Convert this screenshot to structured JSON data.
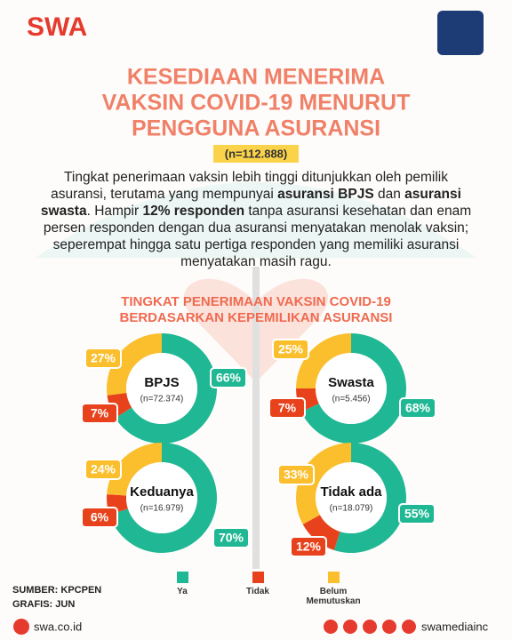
{
  "header": {
    "brand": "SWA",
    "title": [
      "KESEDIAAN MENERIMA",
      "VAKSIN COVID-19 MENURUT",
      "PENGGUNA ASURANSI"
    ],
    "sample": "(n=112.888)"
  },
  "intro": [
    {
      "text": "Tingkat penerimaan vaksin lebih tinggi ditunjukkan oleh pemilik asuransi, terutama yang mempunyai ",
      "bold": false
    },
    {
      "text": "asuransi BPJS",
      "bold": true
    },
    {
      "text": " dan ",
      "bold": false
    },
    {
      "text": "asuransi swasta",
      "bold": true
    },
    {
      "text": ". Hampir ",
      "bold": false
    },
    {
      "text": "12% responden",
      "bold": true
    },
    {
      "text": " tanpa asuransi kesehatan dan enam persen responden dengan dua asuransi menyatakan menolak vaksin; seperempat hingga satu pertiga responden yang memiliki asuransi menyatakan masih ragu.",
      "bold": false
    }
  ],
  "section_title": [
    "TINGKAT PENERIMAAN VAKSIN COVID-19",
    "BERDASARKAN KEPEMILIKAN ASURANSI"
  ],
  "chart_data": [
    {
      "type": "donut",
      "title": "BPJS",
      "subtitle": "(n=72.374)",
      "categories": [
        "Ya",
        "Tidak",
        "Belum Memutuskan"
      ],
      "values": [
        66,
        7,
        27
      ],
      "value_labels": [
        "66%",
        "7%",
        "27%"
      ],
      "colors": [
        "#20b894",
        "#e8421c",
        "#fbbf2e"
      ]
    },
    {
      "type": "donut",
      "title": "Swasta",
      "subtitle": "(n=5.456)",
      "categories": [
        "Ya",
        "Tidak",
        "Belum Memutuskan"
      ],
      "values": [
        68,
        7,
        25
      ],
      "value_labels": [
        "68%",
        "7%",
        "25%"
      ],
      "colors": [
        "#20b894",
        "#e8421c",
        "#fbbf2e"
      ]
    },
    {
      "type": "donut",
      "title": "Keduanya",
      "subtitle": "(n=16.979)",
      "categories": [
        "Ya",
        "Tidak",
        "Belum Memutuskan"
      ],
      "values": [
        70,
        6,
        24
      ],
      "value_labels": [
        "70%",
        "6%",
        "24%"
      ],
      "colors": [
        "#20b894",
        "#e8421c",
        "#fbbf2e"
      ]
    },
    {
      "type": "donut",
      "title": "Tidak ada",
      "subtitle": "(n=18.079)",
      "categories": [
        "Ya",
        "Tidak",
        "Belum Memutuskan"
      ],
      "values": [
        55,
        12,
        33
      ],
      "value_labels": [
        "55%",
        "12%",
        "33%"
      ],
      "colors": [
        "#20b894",
        "#e8421c",
        "#fbbf2e"
      ]
    }
  ],
  "footer": {
    "source": "SUMBER: KPCPEN",
    "graphic": "GRAFIS: JUN",
    "website": "swa.co.id",
    "handle": "swamediainc"
  }
}
